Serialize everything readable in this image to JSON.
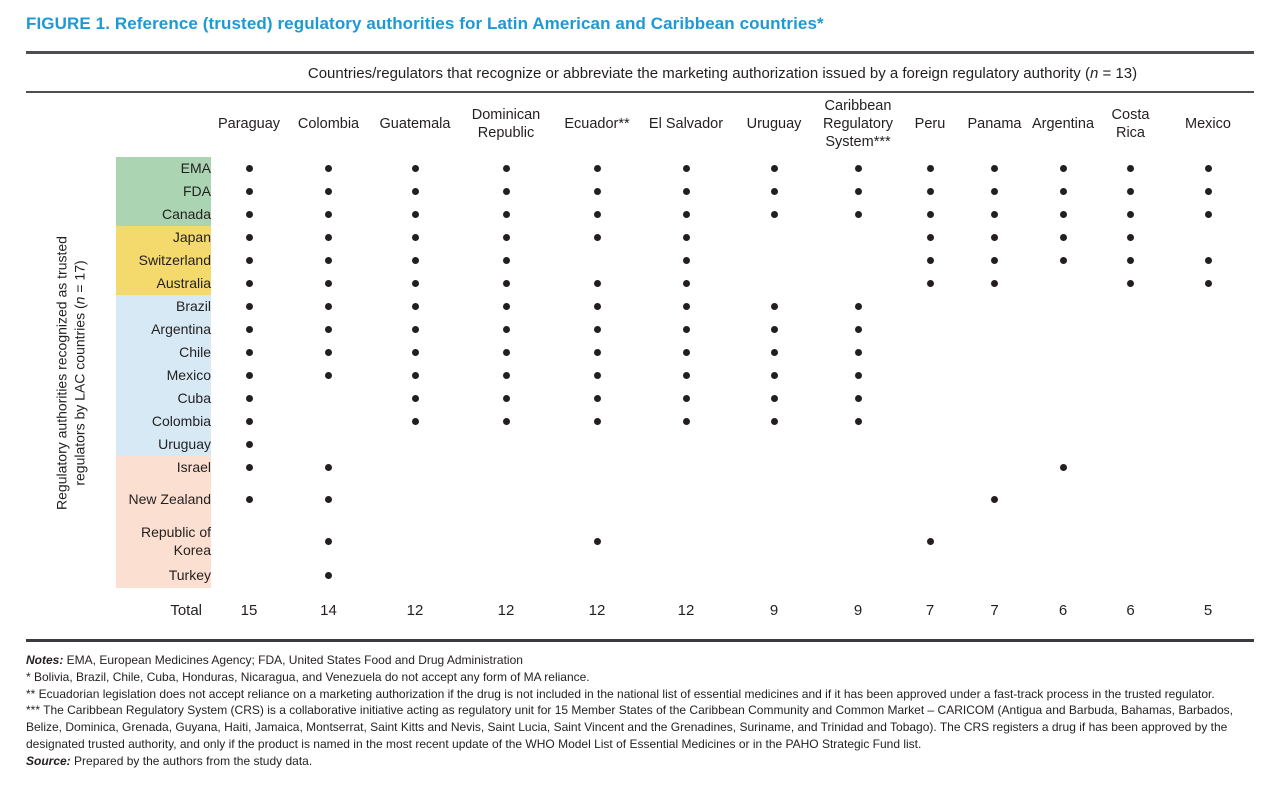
{
  "figure": {
    "title": "FIGURE 1. Reference (trusted) regulatory authorities for Latin American and Caribbean countries*"
  },
  "chart_data": {
    "type": "table",
    "span_header": {
      "prefix": "Countries/regulators that recognize or abbreviate the marketing authorization issued by a foreign regulatory authority (",
      "n_var": "n",
      "suffix": " = 13)"
    },
    "y_axis": {
      "line1": "Regulatory authorities recognized as trusted",
      "line2_prefix": "regulators by LAC countries (",
      "n_var": "n",
      "line2_suffix": " = 17)"
    },
    "columns": [
      "Paraguay",
      "Colombia",
      "Guatemala",
      "Dominican Republic",
      "Ecuador**",
      "El Salvador",
      "Uruguay",
      "Caribbean Regulatory System***",
      "Peru",
      "Panama",
      "Argentina",
      "Costa Rica",
      "Mexico"
    ],
    "rows": [
      {
        "label": "EMA",
        "group": "green",
        "dots": [
          1,
          1,
          1,
          1,
          1,
          1,
          1,
          1,
          1,
          1,
          1,
          1,
          1
        ]
      },
      {
        "label": "FDA",
        "group": "green",
        "dots": [
          1,
          1,
          1,
          1,
          1,
          1,
          1,
          1,
          1,
          1,
          1,
          1,
          1
        ]
      },
      {
        "label": "Canada",
        "group": "green",
        "dots": [
          1,
          1,
          1,
          1,
          1,
          1,
          1,
          1,
          1,
          1,
          1,
          1,
          1
        ]
      },
      {
        "label": "Japan",
        "group": "yellow",
        "dots": [
          1,
          1,
          1,
          1,
          1,
          1,
          0,
          0,
          1,
          1,
          1,
          1,
          0
        ]
      },
      {
        "label": "Switzerland",
        "group": "yellow",
        "dots": [
          1,
          1,
          1,
          1,
          0,
          1,
          0,
          0,
          1,
          1,
          1,
          1,
          1
        ]
      },
      {
        "label": "Australia",
        "group": "yellow",
        "dots": [
          1,
          1,
          1,
          1,
          1,
          1,
          0,
          0,
          1,
          1,
          0,
          1,
          1
        ]
      },
      {
        "label": "Brazil",
        "group": "blue",
        "dots": [
          1,
          1,
          1,
          1,
          1,
          1,
          1,
          1,
          0,
          0,
          0,
          0,
          0
        ]
      },
      {
        "label": "Argentina",
        "group": "blue",
        "dots": [
          1,
          1,
          1,
          1,
          1,
          1,
          1,
          1,
          0,
          0,
          0,
          0,
          0
        ]
      },
      {
        "label": "Chile",
        "group": "blue",
        "dots": [
          1,
          1,
          1,
          1,
          1,
          1,
          1,
          1,
          0,
          0,
          0,
          0,
          0
        ]
      },
      {
        "label": "Mexico",
        "group": "blue",
        "dots": [
          1,
          1,
          1,
          1,
          1,
          1,
          1,
          1,
          0,
          0,
          0,
          0,
          0
        ]
      },
      {
        "label": "Cuba",
        "group": "blue",
        "dots": [
          1,
          0,
          1,
          1,
          1,
          1,
          1,
          1,
          0,
          0,
          0,
          0,
          0
        ]
      },
      {
        "label": "Colombia",
        "group": "blue",
        "dots": [
          1,
          0,
          1,
          1,
          1,
          1,
          1,
          1,
          0,
          0,
          0,
          0,
          0
        ]
      },
      {
        "label": "Uruguay",
        "group": "blue",
        "dots": [
          1,
          0,
          0,
          0,
          0,
          0,
          0,
          0,
          0,
          0,
          0,
          0,
          0
        ]
      },
      {
        "label": "Israel",
        "group": "peach",
        "dots": [
          1,
          1,
          0,
          0,
          0,
          0,
          0,
          0,
          0,
          0,
          1,
          0,
          0
        ]
      },
      {
        "label": "New Zealand",
        "group": "peach",
        "dots": [
          1,
          1,
          0,
          0,
          0,
          0,
          0,
          0,
          0,
          1,
          0,
          0,
          0
        ]
      },
      {
        "label": "Republic of Korea",
        "group": "peach",
        "dots": [
          0,
          1,
          0,
          0,
          1,
          0,
          0,
          0,
          1,
          0,
          0,
          0,
          0
        ]
      },
      {
        "label": "Turkey",
        "group": "peach",
        "dots": [
          0,
          1,
          0,
          0,
          0,
          0,
          0,
          0,
          0,
          0,
          0,
          0,
          0
        ]
      }
    ],
    "total_label": "Total",
    "totals": [
      15,
      14,
      12,
      12,
      12,
      12,
      9,
      9,
      7,
      7,
      6,
      6,
      5
    ],
    "group_colors": {
      "green": "#aad4b2",
      "yellow": "#f4d96d",
      "blue": "#d6e9f5",
      "peach": "#fbdfd0"
    },
    "accent_colors": {
      "title_blue": "#1b9ad6",
      "dot_black": "#231f20"
    }
  },
  "notes": {
    "lines": [
      {
        "label": "Notes:",
        "text": " EMA, European Medicines Agency; FDA, United States Food and Drug Administration"
      },
      {
        "label": "",
        "text": "* Bolivia, Brazil, Chile, Cuba, Honduras, Nicaragua, and Venezuela do not accept any form of MA reliance."
      },
      {
        "label": "",
        "text": "** Ecuadorian legislation does not accept reliance on a marketing authorization if the drug is not included in the national list of essential medicines and if it has been approved under a fast-track process in the trusted regulator."
      },
      {
        "label": "",
        "text": "*** The Caribbean Regulatory System (CRS) is a collaborative initiative acting as regulatory unit for 15 Member States of the Caribbean Community and Common Market – CARICOM (Antigua and Barbuda, Bahamas, Barbados, Belize, Dominica, Grenada, Guyana, Haiti, Jamaica, Montserrat, Saint Kitts and Nevis, Saint Lucia, Saint Vincent and the Grenadines, Suriname, and Trinidad and Tobago). The CRS registers a drug if has been approved by the designated trusted authority, and only if the product is named in the most recent update of the WHO Model List of Essential Medicines or in the PAHO Strategic Fund list."
      },
      {
        "label": "Source:",
        "text": " Prepared by the authors from the study data."
      }
    ]
  }
}
